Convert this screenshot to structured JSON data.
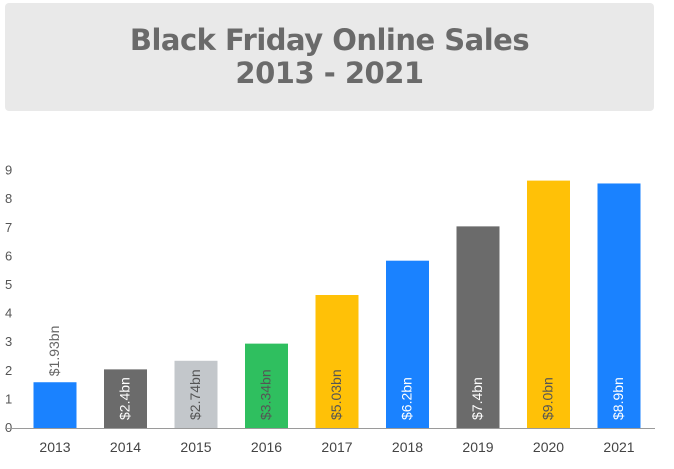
{
  "title": "Black Friday Online Sales",
  "subtitle": "2013 - 2021",
  "chart_data": {
    "type": "bar",
    "title": "Black Friday Online Sales",
    "subtitle": "2013 - 2021",
    "categories": [
      "2013",
      "2014",
      "2015",
      "2016",
      "2017",
      "2018",
      "2019",
      "2020",
      "2021"
    ],
    "values": [
      1.93,
      2.4,
      2.74,
      3.34,
      5.03,
      6.2,
      7.4,
      9.0,
      8.9
    ],
    "bar_tops": [
      1.6,
      2.05,
      2.35,
      2.95,
      4.65,
      5.85,
      7.05,
      8.65,
      8.55
    ],
    "data_labels": [
      "$1.93bn",
      "$2.4bn",
      "$2.74bn",
      "$3.34bn",
      "$5.03bn",
      "$6.2bn",
      "$7.4bn",
      "$9.0bn",
      "$8.9bn"
    ],
    "colors": [
      "#1a82ff",
      "#6b6b6b",
      "#c3c7cb",
      "#2fbf5f",
      "#ffc107",
      "#1a82ff",
      "#6b6b6b",
      "#ffc107",
      "#1a82ff"
    ],
    "label_colors": [
      "#666666",
      "#ffffff",
      "#555555",
      "#555555",
      "#555555",
      "#ffffff",
      "#ffffff",
      "#555555",
      "#ffffff"
    ],
    "yticks": [
      "0",
      "1",
      "2",
      "3",
      "4",
      "5",
      "6",
      "7",
      "8",
      "9"
    ],
    "ylim": [
      0,
      9
    ],
    "xlabel": "",
    "ylabel": "",
    "grid": false,
    "legend": "none"
  }
}
